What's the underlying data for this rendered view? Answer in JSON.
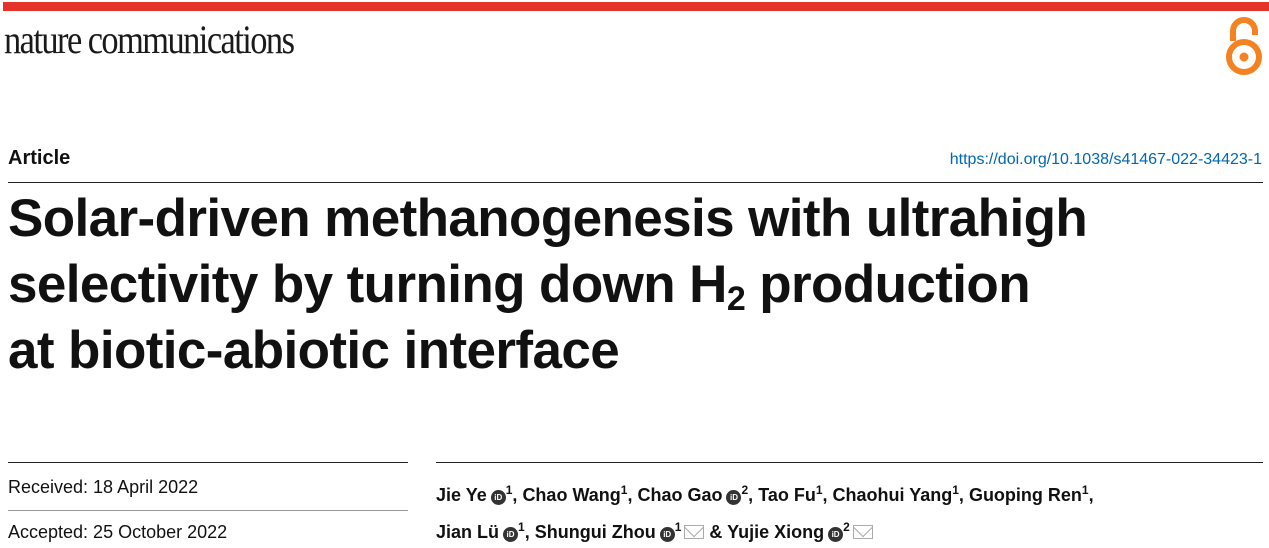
{
  "journal": {
    "name": "nature communications",
    "accent": "#e63329",
    "open_access_color": "#f58220",
    "open_access_icon": "open-access-icon"
  },
  "article": {
    "type": "Article",
    "doi": "https://doi.org/10.1038/s41467-022-34423-1",
    "title_lines": [
      "Solar-driven methanogenesis with ultrahigh",
      "selectivity by turning down H",
      "2",
      " production",
      "at biotic-abiotic interface"
    ]
  },
  "dates": {
    "received": "Received: 18 April 2022",
    "accepted": "Accepted: 25 October 2022"
  },
  "authors": [
    {
      "name": "Jie Ye",
      "aff": "1",
      "orcid": true,
      "sep": ", "
    },
    {
      "name": "Chao Wang",
      "aff": "1",
      "orcid": false,
      "sep": ", "
    },
    {
      "name": "Chao Gao",
      "aff": "2",
      "orcid": true,
      "sep": ", "
    },
    {
      "name": "Tao Fu",
      "aff": "1",
      "orcid": false,
      "sep": ", "
    },
    {
      "name": "Chaohui Yang",
      "aff": "1",
      "orcid": false,
      "sep": ", "
    },
    {
      "name": "Guoping Ren",
      "aff": "1",
      "orcid": false,
      "sep": ","
    },
    {
      "name": "Jian Lü",
      "aff": "1",
      "orcid": true,
      "sep": ", "
    },
    {
      "name": "Shungui Zhou",
      "aff": "1",
      "orcid": true,
      "email": true,
      "sep": " & "
    },
    {
      "name": "Yujie Xiong",
      "aff": "2",
      "orcid": true,
      "email": true,
      "sep": ""
    }
  ],
  "orcid_label": "iD"
}
